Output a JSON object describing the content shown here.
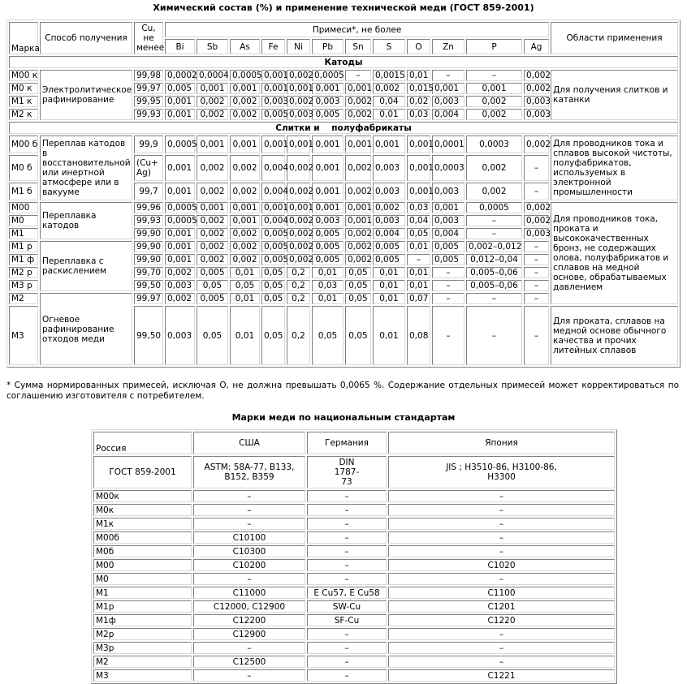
{
  "composition_table": {
    "title": "Химический состав (%) и применение  технической меди (ГОСТ 859-2001)",
    "headers": {
      "grade": "Марка",
      "method": "Способ получения",
      "cu": "Cu, не менее",
      "impurities": "Примеси*, не более",
      "elements": [
        "Bi",
        "Sb",
        "As",
        "Fe",
        "Ni",
        "Pb",
        "Sn",
        "S",
        "O",
        "Zn",
        "P",
        "Ag"
      ],
      "application": "Области применения"
    },
    "sections": [
      {
        "title": "Катоды",
        "rows": [
          {
            "grade": "М00 к",
            "method": "Электролитическое рафинирование",
            "application": "Для получения слитков и катанки",
            "values": [
              "99,98",
              "0,0002",
              "0,0004",
              "0,0005",
              "0,001",
              "0,002",
              "0,0005",
              "–",
              "0,0015",
              "0,01",
              "–",
              "–",
              "0,002"
            ]
          },
          {
            "grade": "М0 к",
            "method": null,
            "application": null,
            "values": [
              "99,97",
              "0,005",
              "0,001",
              "0,001",
              "0,001",
              "0,001",
              "0,001",
              "0,001",
              "0,002",
              "0,015",
              "0,001",
              "0,001",
              "0,002"
            ]
          },
          {
            "grade": "М1 к",
            "method": null,
            "application": null,
            "values": [
              "99,95",
              "0,001",
              "0,002",
              "0,002",
              "0,003",
              "0,002",
              "0,003",
              "0,002",
              "0,04",
              "0,02",
              "0,003",
              "0,002",
              "0,003"
            ]
          },
          {
            "grade": "М2 к",
            "method": null,
            "application": null,
            "values": [
              "99,93",
              "0,001",
              "0,002",
              "0,002",
              "0,005",
              "0,003",
              "0,005",
              "0,002",
              "0,01",
              "0,03",
              "0,004",
              "0,002",
              "0,003"
            ]
          }
        ]
      },
      {
        "title": "Слитки и    полуфабрикаты",
        "rows": [
          {
            "grade": "М00 б",
            "method": "Переплав катодов в восстановительной или инертной атмосфере или в вакууме",
            "application": "Для проводников тока и сплавов высокой чистоты, полуфабрикатов, используемых в электронной промышленности",
            "values": [
              "99,9",
              "0,0005",
              "0,001",
              "0,001",
              "0,001",
              "0,001",
              "0,001",
              "0,001",
              "0,001",
              "0,001",
              "0,0001",
              "0,0003",
              "0,002"
            ]
          },
          {
            "grade": "М0 б",
            "method": null,
            "application": null,
            "values": [
              "(Cu+ Ag)",
              "0,001",
              "0,002",
              "0,002",
              "0,004",
              "0,002",
              "0,001",
              "0,002",
              "0,003",
              "0,001",
              "0,0003",
              "0,002",
              "–"
            ]
          },
          {
            "grade": "М1 б",
            "method": null,
            "application": null,
            "values": [
              "99,7",
              "0,001",
              "0,002",
              "0,002",
              "0,004",
              "0,002",
              "0,001",
              "0,002",
              "0,003",
              "0,001",
              "0,003",
              "0,002",
              "–"
            ]
          },
          {
            "grade": "М00",
            "method": "Переплавка катодов",
            "application": "Для проводников тока, проката и высококачественных бронз, не содержащих олова, полуфабрикатов и сплавов на медной основе, обрабатываемых давлением",
            "values": [
              "99,96",
              "0,0005",
              "0,001",
              "0,001",
              "0,001",
              "0,001",
              "0,001",
              "0,001",
              "0,002",
              "0,03",
              "0,001",
              "0,0005",
              "0,002"
            ]
          },
          {
            "grade": "М0",
            "method": null,
            "application": null,
            "values": [
              "99,93",
              "0,0005",
              "0,002",
              "0,001",
              "0,004",
              "0,002",
              "0,003",
              "0,001",
              "0,003",
              "0,04",
              "0,003",
              "–",
              "0,002"
            ]
          },
          {
            "grade": "М1",
            "method": null,
            "application": null,
            "values": [
              "99,90",
              "0,001",
              "0,002",
              "0,002",
              "0,005",
              "0,002",
              "0,005",
              "0,002",
              "0,004",
              "0,05",
              "0,004",
              "–",
              "0,003"
            ]
          },
          {
            "grade": "М1 р",
            "method": "Переплавка с раскислением",
            "application": null,
            "values": [
              "99,90",
              "0,001",
              "0,002",
              "0,002",
              "0,005",
              "0,002",
              "0,005",
              "0,002",
              "0,005",
              "0,01",
              "0,005",
              "0,002–0,012",
              "–"
            ]
          },
          {
            "grade": "М1 ф",
            "method": null,
            "application": null,
            "values": [
              "99,90",
              "0,001",
              "0,002",
              "0,002",
              "0,005",
              "0,002",
              "0,005",
              "0,002",
              "0,005",
              "–",
              "0,005",
              "0,012–0,04",
              "–"
            ]
          },
          {
            "grade": "М2 р",
            "method": null,
            "application": null,
            "values": [
              "99,70",
              "0,002",
              "0,005",
              "0,01",
              "0,05",
              "0,2",
              "0,01",
              "0,05",
              "0,01",
              "0,01",
              "–",
              "0,005–0,06",
              "–"
            ]
          },
          {
            "grade": "М3 р",
            "method": null,
            "application": null,
            "values": [
              "99,50",
              "0,003",
              "0,05",
              "0,05",
              "0,05",
              "0,2",
              "0,03",
              "0,05",
              "0,01",
              "0,01",
              "–",
              "0,005–0,06",
              "–"
            ]
          },
          {
            "grade": "М2",
            "method": "Огневое рафинирование отходов меди",
            "application": null,
            "values": [
              "99,97",
              "0,002",
              "0,005",
              "0,01",
              "0,05",
              "0,2",
              "0,01",
              "0,05",
              "0,01",
              "0,07",
              "–",
              "–",
              "–"
            ]
          },
          {
            "grade": "М3",
            "method": null,
            "application": "Для проката, сплавов на медной основе обычного качества и прочих литейных сплавов",
            "values": [
              "99,50",
              "0,003",
              "0,05",
              "0,01",
              "0,05",
              "0,2",
              "0,05",
              "0,05",
              "0,01",
              "0,08",
              "–",
              "–",
              "–"
            ]
          }
        ]
      }
    ],
    "footnote": "* Сумма нормированных примесей, исключая O, не должна превышать 0,0065 %. Содержание отдельных примесей может корректироваться по соглашению изготовителя с потребителем."
  },
  "standards_table": {
    "title": "Марки меди по национальным стандартам",
    "countries": [
      "Россия",
      "США",
      "Германия",
      "Япония"
    ],
    "standards": [
      "ГОСТ 859-2001",
      "ASTM: 58A-77, B133, B152, B359",
      "DIN 1787-73",
      "JIS ; H3510-86, H3100-86, H3300"
    ],
    "rows": [
      [
        "М00к",
        "–",
        "–",
        "–"
      ],
      [
        "М0к",
        "–",
        "–",
        "–"
      ],
      [
        "М1к",
        "–",
        "–",
        "–"
      ],
      [
        "М00б",
        "C10100",
        "–",
        "–"
      ],
      [
        "М0б",
        "C10300",
        "–",
        "–"
      ],
      [
        "М00",
        "C10200",
        "–",
        "C1020"
      ],
      [
        "М0",
        "–",
        "–",
        "–"
      ],
      [
        "М1",
        "C11000",
        "E Cu57, E Cu58",
        "C1100"
      ],
      [
        "М1р",
        "C12000, C12900",
        "SW-Cu",
        "C1201"
      ],
      [
        "М1ф",
        "C12200",
        "SF-Cu",
        "C1220"
      ],
      [
        "М2р",
        "C12900",
        "–",
        "–"
      ],
      [
        "М3р",
        "–",
        "–",
        "–"
      ],
      [
        "М2",
        "C12500",
        "–",
        "–"
      ],
      [
        "М3",
        "–",
        "–",
        "C1221"
      ]
    ]
  }
}
